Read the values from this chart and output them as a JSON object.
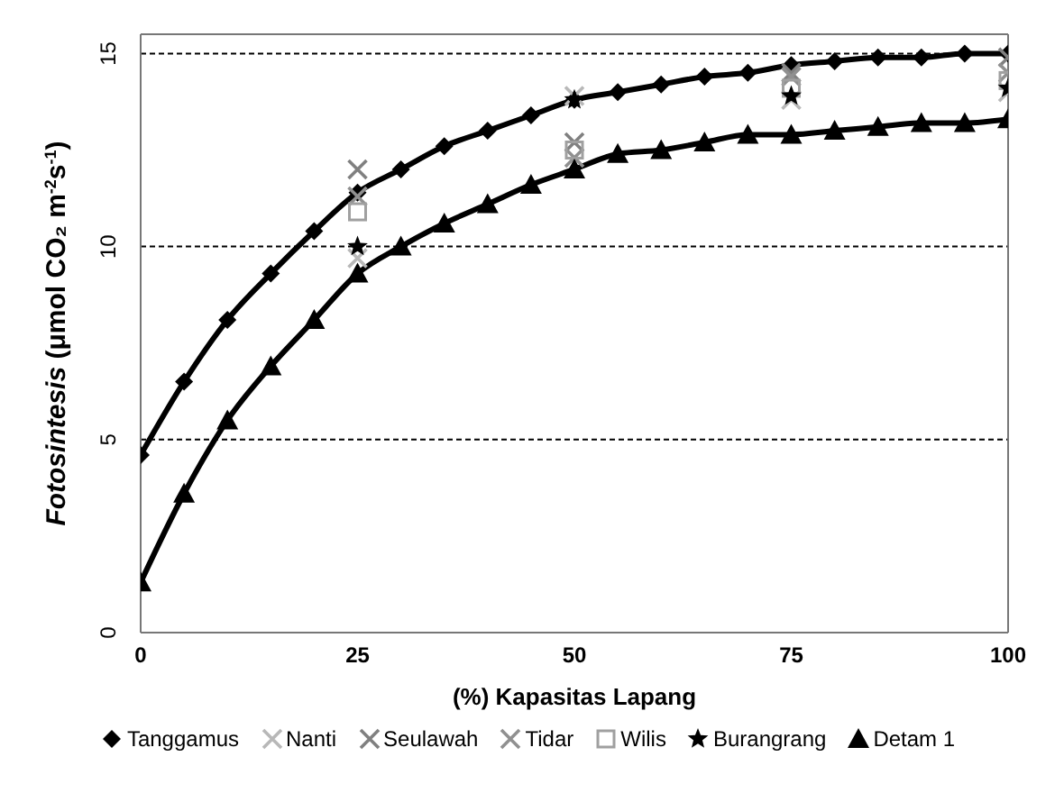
{
  "chart_data": {
    "type": "line",
    "xlabel": "(%) Kapasitas Lapang",
    "ylabel": "Fotosintesis  (μmol CO₂ m$^{-2}$s$^{-1}$)",
    "xlim": [
      0,
      100
    ],
    "xticks": [
      0,
      25,
      50,
      75,
      100
    ],
    "ylim": [
      0,
      15.5
    ],
    "yticks": [
      0,
      5,
      10,
      15
    ],
    "grid": "y",
    "legend": "bottom",
    "line_style": "solid",
    "series": [
      {
        "name": "Tanggamus",
        "marker": "diamond",
        "color": "#000000",
        "x": [
          0,
          5,
          10,
          15,
          20,
          25,
          30,
          35,
          40,
          45,
          50,
          55,
          60,
          65,
          70,
          75,
          80,
          85,
          90,
          95,
          100
        ],
        "values": [
          4.6,
          6.5,
          8.1,
          9.3,
          10.4,
          11.4,
          12.0,
          12.6,
          13.0,
          13.4,
          13.8,
          14.0,
          14.2,
          14.4,
          14.5,
          14.7,
          14.8,
          14.9,
          14.9,
          15.0,
          15.0
        ]
      },
      {
        "name": "Nanti",
        "type": "scatter",
        "marker": "cross",
        "color": "#b8b8b8",
        "x": [
          25,
          50,
          75,
          100
        ],
        "values": [
          9.7,
          13.9,
          13.8,
          14.0
        ]
      },
      {
        "name": "Seulawah",
        "type": "scatter",
        "marker": "cross",
        "color": "#808080",
        "x": [
          25,
          50,
          75,
          100
        ],
        "values": [
          12.0,
          12.7,
          14.5,
          14.9
        ]
      },
      {
        "name": "Tidar",
        "type": "scatter",
        "marker": "cross",
        "color": "#909090",
        "x": [
          25,
          50,
          75,
          100
        ],
        "values": [
          11.3,
          12.3,
          14.4,
          14.5
        ]
      },
      {
        "name": "Wilis",
        "type": "scatter",
        "marker": "square",
        "color": "#a0a0a0",
        "x": [
          25,
          50,
          75,
          100
        ],
        "values": [
          10.9,
          12.5,
          14.1,
          14.3
        ]
      },
      {
        "name": "Burangrang",
        "type": "scatter",
        "marker": "star",
        "color": "#000000",
        "x": [
          25,
          50,
          75,
          100
        ],
        "values": [
          10.0,
          13.8,
          13.9,
          14.1
        ]
      },
      {
        "name": "Detam 1",
        "marker": "triangle",
        "color": "#000000",
        "x": [
          0,
          5,
          10,
          15,
          20,
          25,
          30,
          35,
          40,
          45,
          50,
          55,
          60,
          65,
          70,
          75,
          80,
          85,
          90,
          95,
          100
        ],
        "values": [
          1.3,
          3.6,
          5.5,
          6.9,
          8.1,
          9.3,
          10.0,
          10.6,
          11.1,
          11.6,
          12.0,
          12.4,
          12.5,
          12.7,
          12.9,
          12.9,
          13.0,
          13.1,
          13.2,
          13.2,
          13.3
        ]
      }
    ]
  }
}
